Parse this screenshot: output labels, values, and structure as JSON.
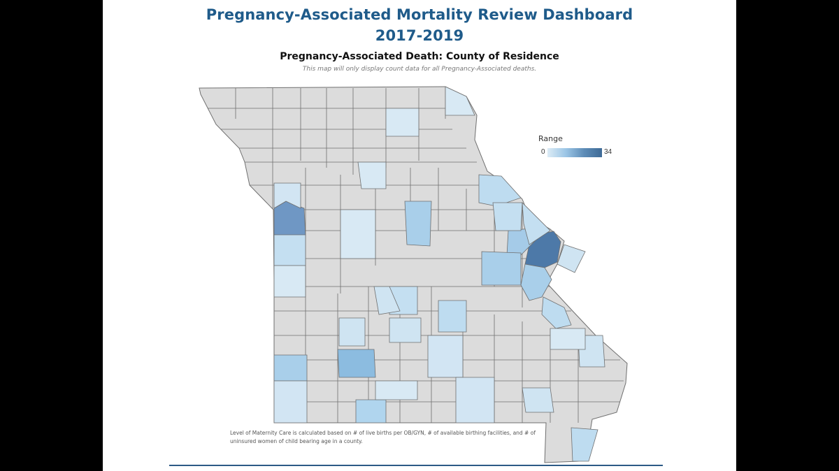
{
  "dashboard": {
    "title_line1": "Pregnancy-Associated Mortality Review Dashboard",
    "title_line2": "2017-2019"
  },
  "map": {
    "subtitle": "Pregnancy-Associated Death: County of Residence",
    "note": "This map will only display count data for all Pregnancy-Associated deaths.",
    "region": "Missouri counties",
    "colors": {
      "no_data": "#dcdcdc",
      "border": "#6f6f6f",
      "range_min": "#dcebf5",
      "range_max": "#3e6a96"
    }
  },
  "legend": {
    "title": "Range",
    "min": "0",
    "max": "34"
  },
  "footnote": "Level of Maternity Care is calculated based on # of live births per OB/GYN, # of available birthing facilities, and # of uninsured women of child bearing age in a county."
}
